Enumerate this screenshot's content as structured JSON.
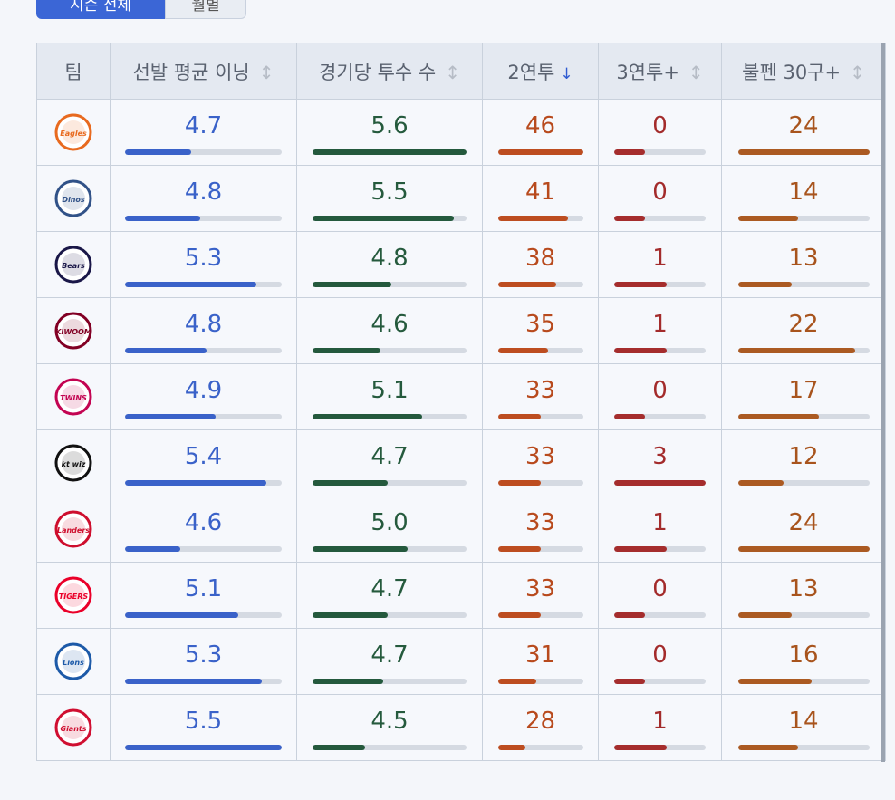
{
  "segment": {
    "tab1": "시즌 전체",
    "tab2": "월별"
  },
  "header": {
    "team": "팀",
    "starter_ip": "선발 평균 이닝",
    "pitchers_per_game": "경기당 투수 수",
    "two_days": "2연투",
    "three_days": "3연투+",
    "bullpen30": "불펜 30구+"
  },
  "sort_icons": {
    "neutral": "↕",
    "desc": "↓"
  },
  "colors": {
    "blue": "#3a62c9",
    "green": "#24593d",
    "orange": "#bd4d20",
    "red": "#a52d2d",
    "brown": "#ab5a22"
  },
  "rows": [
    {
      "logo": "eagles-logo",
      "logo_text": "Eagles",
      "logo_color": "#e86a1f",
      "ip": "4.7",
      "ip_f": 0.42,
      "ppg": "5.6",
      "ppg_f": 1.0,
      "two": "46",
      "two_f": 1.0,
      "three": "0",
      "three_f": 0.34,
      "b30": "24",
      "b30_f": 1.0
    },
    {
      "logo": "dinos-logo",
      "logo_text": "Dinos",
      "logo_color": "#315288",
      "ip": "4.8",
      "ip_f": 0.48,
      "ppg": "5.5",
      "ppg_f": 0.92,
      "two": "41",
      "two_f": 0.82,
      "three": "0",
      "three_f": 0.34,
      "b30": "14",
      "b30_f": 0.46
    },
    {
      "logo": "bears-logo",
      "logo_text": "Bears",
      "logo_color": "#1a1748",
      "ip": "5.3",
      "ip_f": 0.84,
      "ppg": "4.8",
      "ppg_f": 0.51,
      "two": "38",
      "two_f": 0.69,
      "three": "1",
      "three_f": 0.57,
      "b30": "13",
      "b30_f": 0.41
    },
    {
      "logo": "kiwoom-logo",
      "logo_text": "KIWOOM",
      "logo_color": "#820024",
      "ip": "4.8",
      "ip_f": 0.52,
      "ppg": "4.6",
      "ppg_f": 0.44,
      "two": "35",
      "two_f": 0.59,
      "three": "1",
      "three_f": 0.57,
      "b30": "22",
      "b30_f": 0.89
    },
    {
      "logo": "twins-logo",
      "logo_text": "TWINS",
      "logo_color": "#c30452",
      "ip": "4.9",
      "ip_f": 0.58,
      "ppg": "5.1",
      "ppg_f": 0.71,
      "two": "33",
      "two_f": 0.51,
      "three": "0",
      "three_f": 0.34,
      "b30": "17",
      "b30_f": 0.62
    },
    {
      "logo": "ktwiz-logo",
      "logo_text": "kt wiz",
      "logo_color": "#111111",
      "ip": "5.4",
      "ip_f": 0.9,
      "ppg": "4.7",
      "ppg_f": 0.49,
      "two": "33",
      "two_f": 0.51,
      "three": "3",
      "three_f": 1.0,
      "b30": "12",
      "b30_f": 0.35
    },
    {
      "logo": "landers-logo",
      "logo_text": "Landers",
      "logo_color": "#ce0e2d",
      "ip": "4.6",
      "ip_f": 0.35,
      "ppg": "5.0",
      "ppg_f": 0.62,
      "two": "33",
      "two_f": 0.51,
      "three": "1",
      "three_f": 0.57,
      "b30": "24",
      "b30_f": 1.0
    },
    {
      "logo": "tigers-logo",
      "logo_text": "TIGERS",
      "logo_color": "#ea0029",
      "ip": "5.1",
      "ip_f": 0.72,
      "ppg": "4.7",
      "ppg_f": 0.49,
      "two": "33",
      "two_f": 0.51,
      "three": "0",
      "three_f": 0.34,
      "b30": "13",
      "b30_f": 0.41
    },
    {
      "logo": "lions-logo",
      "logo_text": "Lions",
      "logo_color": "#1d5aa8",
      "ip": "5.3",
      "ip_f": 0.87,
      "ppg": "4.7",
      "ppg_f": 0.46,
      "two": "31",
      "two_f": 0.45,
      "three": "0",
      "three_f": 0.34,
      "b30": "16",
      "b30_f": 0.56
    },
    {
      "logo": "giants-logo",
      "logo_text": "Giants",
      "logo_color": "#d00f31",
      "ip": "5.5",
      "ip_f": 1.0,
      "ppg": "4.5",
      "ppg_f": 0.34,
      "two": "28",
      "two_f": 0.32,
      "three": "1",
      "three_f": 0.57,
      "b30": "14",
      "b30_f": 0.46
    }
  ]
}
